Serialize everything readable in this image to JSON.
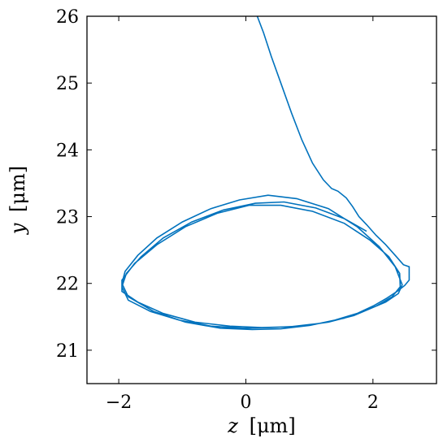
{
  "chart_data": {
    "type": "line",
    "xlabel": {
      "var": "z",
      "unit": "[μm]"
    },
    "ylabel": {
      "var": "y",
      "unit": "[μm]"
    },
    "xlim": [
      -2.5,
      3.0
    ],
    "ylim": [
      20.5,
      26.0
    ],
    "xticks": [
      -2,
      0,
      2
    ],
    "yticks": [
      21,
      22,
      23,
      24,
      25,
      26
    ],
    "xtick_labels": [
      "−2",
      "0",
      "2"
    ],
    "ytick_labels": [
      "21",
      "22",
      "23",
      "24",
      "25",
      "26"
    ],
    "grid": false,
    "line_color": "#0072BD",
    "series": [
      {
        "x": [
          0.18,
          0.28,
          0.4,
          0.55,
          0.72,
          0.88,
          1.05,
          1.22,
          1.35,
          1.45,
          1.58,
          1.68,
          1.78,
          1.9,
          2.05,
          2.2,
          2.35,
          2.48,
          2.57,
          2.57,
          2.5,
          2.38,
          2.22,
          2.02,
          1.75,
          1.4,
          1.0,
          0.55,
          0.1,
          -0.4,
          -0.95,
          -1.45,
          -1.85,
          -1.95,
          -1.9,
          -1.7,
          -1.4,
          -1.0,
          -0.55,
          -0.1,
          0.35,
          0.8,
          1.3,
          1.75,
          2.1,
          2.35,
          2.46,
          2.4,
          2.2,
          1.9,
          1.55,
          1.15,
          0.7,
          0.25,
          -0.25,
          -0.8,
          -1.3,
          -1.7,
          -1.95,
          -1.95,
          -1.75,
          -1.4,
          -0.95,
          -0.45,
          0.05,
          0.55,
          1.05,
          1.55,
          1.95,
          2.25,
          2.42,
          2.43,
          2.3,
          2.05,
          1.7,
          1.3,
          0.85,
          0.4,
          -0.05,
          -0.55,
          -1.05,
          -1.5,
          -1.85,
          -1.95,
          -1.88,
          -1.65,
          -1.3,
          -0.85,
          -0.35,
          0.15,
          0.6,
          1.1,
          1.55,
          1.9
        ],
        "y": [
          26.0,
          25.75,
          25.4,
          25.0,
          24.55,
          24.15,
          23.8,
          23.55,
          23.42,
          23.38,
          23.28,
          23.15,
          23.0,
          22.88,
          22.72,
          22.58,
          22.42,
          22.28,
          22.25,
          22.05,
          21.97,
          21.88,
          21.78,
          21.67,
          21.55,
          21.45,
          21.37,
          21.32,
          21.31,
          21.33,
          21.42,
          21.58,
          21.8,
          22.0,
          22.18,
          22.42,
          22.68,
          22.92,
          23.12,
          23.25,
          23.32,
          23.27,
          23.12,
          22.85,
          22.55,
          22.25,
          21.98,
          21.85,
          21.72,
          21.6,
          21.48,
          21.4,
          21.35,
          21.34,
          21.36,
          21.42,
          21.55,
          21.72,
          21.88,
          22.05,
          22.3,
          22.58,
          22.85,
          23.05,
          23.17,
          23.17,
          23.08,
          22.9,
          22.65,
          22.4,
          22.15,
          21.95,
          21.8,
          21.66,
          21.52,
          21.42,
          21.36,
          21.34,
          21.33,
          21.36,
          21.45,
          21.58,
          21.75,
          21.95,
          22.15,
          22.4,
          22.68,
          22.92,
          23.1,
          23.2,
          23.22,
          23.13,
          22.97,
          22.78
        ]
      }
    ]
  }
}
